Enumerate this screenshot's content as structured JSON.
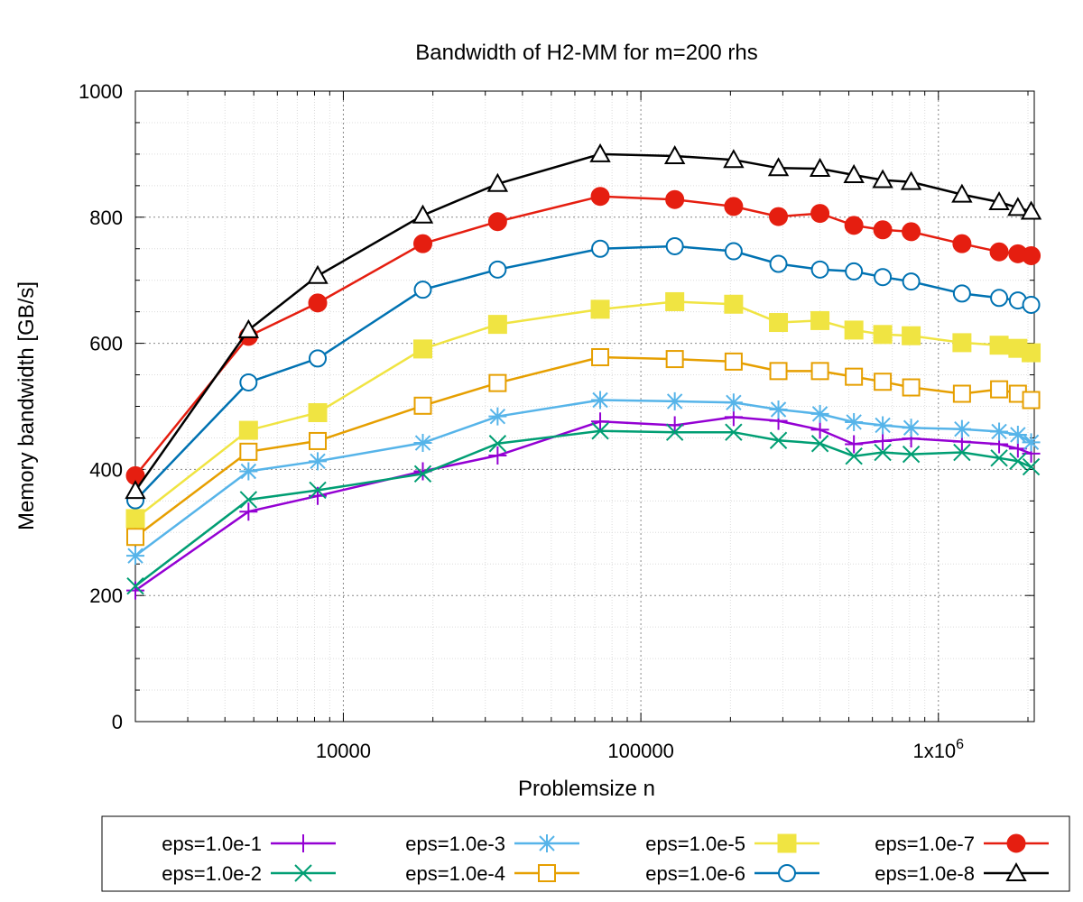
{
  "chart_data": {
    "type": "line",
    "title": "Bandwidth of H2-MM for m=200 rhs",
    "xlabel": "Problemsize n",
    "ylabel": "Memory bandwidth [GB/s]",
    "xscale": "log",
    "xlim": [
      2000,
      2100000
    ],
    "ylim": [
      0,
      1000
    ],
    "x_ticks": [
      {
        "value": 10000,
        "label": "10000"
      },
      {
        "value": 100000,
        "label": "100000"
      },
      {
        "value": 1000000,
        "label": "1x10",
        "sup": "6"
      }
    ],
    "y_ticks": [
      {
        "value": 0,
        "label": "0"
      },
      {
        "value": 200,
        "label": "200"
      },
      {
        "value": 400,
        "label": "400"
      },
      {
        "value": 600,
        "label": "600"
      },
      {
        "value": 800,
        "label": "800"
      },
      {
        "value": 1000,
        "label": "1000"
      }
    ],
    "grid": true,
    "legend_position": "bottom",
    "x": [
      2000,
      4800,
      8200,
      18500,
      33000,
      73000,
      130000,
      205000,
      290000,
      400000,
      520000,
      650000,
      810000,
      1200000,
      1600000,
      1850000,
      2050000
    ],
    "series": [
      {
        "name": "eps=1.0e-1",
        "color": "#9400d3",
        "marker": "plus",
        "values": [
          208,
          333,
          358,
          397,
          422,
          476,
          470,
          483,
          477,
          463,
          440,
          445,
          449,
          444,
          440,
          433,
          425
        ]
      },
      {
        "name": "eps=1.0e-2",
        "color": "#009e73",
        "marker": "cross",
        "values": [
          215,
          352,
          367,
          393,
          441,
          461,
          459,
          459,
          446,
          441,
          421,
          427,
          424,
          427,
          418,
          413,
          404
        ]
      },
      {
        "name": "eps=1.0e-3",
        "color": "#56b4e9",
        "marker": "star",
        "values": [
          263,
          397,
          413,
          442,
          484,
          510,
          508,
          506,
          495,
          488,
          475,
          470,
          466,
          464,
          460,
          455,
          443
        ]
      },
      {
        "name": "eps=1.0e-4",
        "color": "#e69f00",
        "marker": "square-open",
        "values": [
          293,
          428,
          445,
          501,
          537,
          578,
          575,
          571,
          556,
          556,
          547,
          539,
          530,
          520,
          527,
          520,
          510
        ]
      },
      {
        "name": "eps=1.0e-5",
        "color": "#f0e442",
        "marker": "square-filled",
        "values": [
          322,
          462,
          490,
          591,
          630,
          654,
          666,
          662,
          633,
          636,
          621,
          614,
          612,
          601,
          597,
          592,
          585
        ]
      },
      {
        "name": "eps=1.0e-6",
        "color": "#0072b2",
        "marker": "circle-open",
        "values": [
          351,
          538,
          576,
          685,
          717,
          750,
          754,
          746,
          726,
          717,
          714,
          705,
          698,
          679,
          672,
          668,
          661
        ]
      },
      {
        "name": "eps=1.0e-7",
        "color": "#e51e10",
        "marker": "circle-filled",
        "values": [
          390,
          611,
          664,
          758,
          793,
          833,
          828,
          817,
          801,
          806,
          787,
          780,
          777,
          758,
          745,
          742,
          739
        ]
      },
      {
        "name": "eps=1.0e-8",
        "color": "#000000",
        "marker": "triangle-open",
        "values": [
          366,
          621,
          707,
          803,
          853,
          900,
          897,
          891,
          878,
          877,
          867,
          859,
          856,
          836,
          824,
          815,
          809
        ]
      }
    ]
  }
}
